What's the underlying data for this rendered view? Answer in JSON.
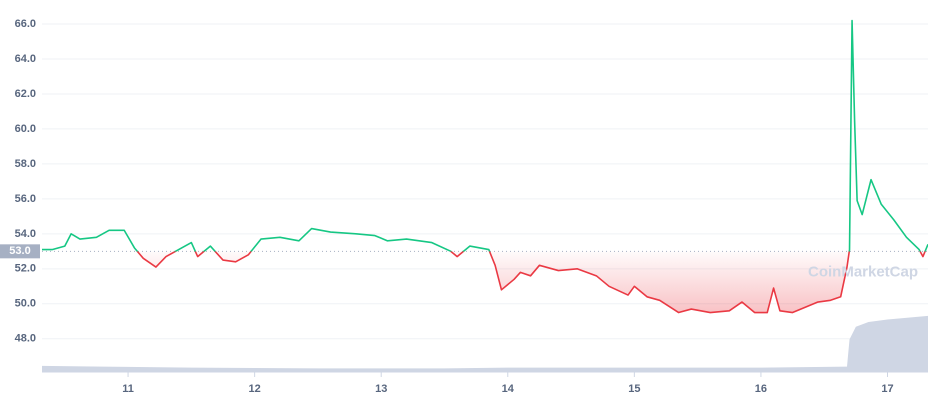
{
  "chart_data": {
    "type": "line",
    "xlim": [
      10.32,
      17.32
    ],
    "xticks": [
      11,
      12,
      13,
      14,
      15,
      16,
      17
    ],
    "ylim": [
      46.1,
      66.8
    ],
    "yticks": [
      {
        "value": 48,
        "label": "48.0"
      },
      {
        "value": 50,
        "label": "50.0"
      },
      {
        "value": 52,
        "label": "52.0"
      },
      {
        "value": 54,
        "label": "54.0"
      },
      {
        "value": 56,
        "label": "56.0"
      },
      {
        "value": 58,
        "label": "58.0"
      },
      {
        "value": 60,
        "label": "60.0"
      },
      {
        "value": 62,
        "label": "62.0"
      },
      {
        "value": 64,
        "label": "64.0"
      },
      {
        "value": 66,
        "label": "66.0"
      }
    ],
    "y2lim": [
      0,
      10
    ],
    "grid": true,
    "baseline": {
      "value": 53,
      "label": "53.0"
    },
    "watermark": "CoinMarketCap",
    "price": {
      "color_up": "#16c784",
      "color_down": "#ea3943",
      "x": [
        10.32,
        10.4,
        10.5,
        10.55,
        10.62,
        10.75,
        10.85,
        10.97,
        11.05,
        11.12,
        11.22,
        11.3,
        11.4,
        11.5,
        11.55,
        11.65,
        11.75,
        11.85,
        11.95,
        12.05,
        12.2,
        12.35,
        12.45,
        12.6,
        12.8,
        12.95,
        13.05,
        13.2,
        13.4,
        13.55,
        13.6,
        13.7,
        13.85,
        13.9,
        13.95,
        14.05,
        14.1,
        14.18,
        14.25,
        14.4,
        14.55,
        14.7,
        14.8,
        14.95,
        15.0,
        15.1,
        15.2,
        15.35,
        15.45,
        15.6,
        15.75,
        15.85,
        15.95,
        16.05,
        16.1,
        16.15,
        16.25,
        16.35,
        16.45,
        16.55,
        16.63,
        16.68,
        16.7,
        16.72,
        16.74,
        16.76,
        16.8,
        16.87,
        16.95,
        17.05,
        17.15,
        17.25,
        17.28,
        17.32
      ],
      "values": [
        53.1,
        53.1,
        53.3,
        54.0,
        53.7,
        53.8,
        54.2,
        54.2,
        53.2,
        52.6,
        52.1,
        52.7,
        53.1,
        53.5,
        52.7,
        53.3,
        52.5,
        52.4,
        52.8,
        53.7,
        53.8,
        53.6,
        54.3,
        54.1,
        54.0,
        53.9,
        53.6,
        53.7,
        53.5,
        53.0,
        52.7,
        53.3,
        53.1,
        52.2,
        50.8,
        51.4,
        51.8,
        51.6,
        52.2,
        51.9,
        52.0,
        51.6,
        51.0,
        50.5,
        51.0,
        50.4,
        50.2,
        49.5,
        49.7,
        49.5,
        49.6,
        50.1,
        49.5,
        49.5,
        50.9,
        49.6,
        49.5,
        49.8,
        50.1,
        50.2,
        50.4,
        52.1,
        53.1,
        66.2,
        60.5,
        55.9,
        55.1,
        57.1,
        55.7,
        54.8,
        53.8,
        53.1,
        52.7,
        53.4
      ]
    },
    "volume": {
      "axis": "y2",
      "color": "#cfd6e4",
      "x": [
        10.32,
        10.8,
        11.5,
        12.5,
        13.5,
        14.0,
        15.0,
        16.0,
        16.68,
        16.7,
        16.75,
        16.85,
        17.0,
        17.32
      ],
      "values": [
        0.17,
        0.15,
        0.12,
        0.1,
        0.1,
        0.12,
        0.12,
        0.12,
        0.15,
        0.9,
        1.25,
        1.38,
        1.45,
        1.55
      ]
    }
  }
}
